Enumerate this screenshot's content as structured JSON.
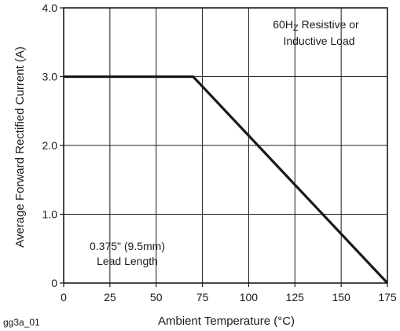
{
  "chart_data": {
    "type": "line",
    "xlabel": "Ambient Temperature (°C)",
    "ylabel": "Average Forward Rectified Current (A)",
    "xlim": [
      0,
      175
    ],
    "ylim": [
      0,
      4.0
    ],
    "x_ticks": [
      0,
      25,
      50,
      75,
      100,
      125,
      150,
      175
    ],
    "x_tick_labels": [
      "0",
      "25",
      "50",
      "75",
      "100",
      "125",
      "150",
      "175"
    ],
    "y_ticks": [
      0,
      1.0,
      2.0,
      3.0,
      4.0
    ],
    "y_tick_labels": [
      "0",
      "1.0",
      "2.0",
      "3.0",
      "4.0"
    ],
    "grid": true,
    "series": [
      {
        "x": [
          0,
          70,
          175
        ],
        "y": [
          3.0,
          3.0,
          0
        ]
      }
    ],
    "annotations": {
      "load_line1_main": "60H",
      "load_line1_sub": "Z",
      "load_line1_rest": " Resistive or",
      "load_line2": "Inductive Load",
      "lead_line1": "0.375\" (9.5mm)",
      "lead_line2": "Lead Length"
    },
    "figure_code": "gg3a_01",
    "colors": {
      "line": "#1a1a1a",
      "grid": "#1a1a1a",
      "background": "#ffffff"
    }
  }
}
